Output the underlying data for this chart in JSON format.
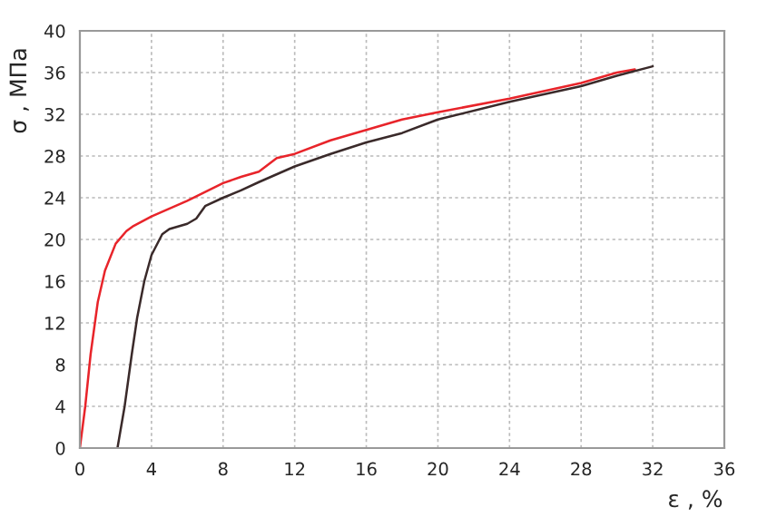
{
  "chart_data": {
    "type": "line",
    "xlabel": "ε , %",
    "ylabel": "σ , МПа",
    "xlim": [
      0,
      36
    ],
    "ylim": [
      0,
      40
    ],
    "xticks": [
      0,
      4,
      8,
      12,
      16,
      20,
      24,
      28,
      32,
      36
    ],
    "yticks": [
      0,
      4,
      8,
      12,
      16,
      20,
      24,
      28,
      32,
      36,
      40
    ],
    "grid": true,
    "marker": "none",
    "line_style": "solid",
    "series": [
      {
        "color": "#e8242a",
        "x": [
          0,
          0.3,
          0.6,
          1,
          1.4,
          2,
          2.6,
          3,
          4,
          6,
          8,
          9,
          10,
          11,
          12,
          14,
          16,
          18,
          20,
          24,
          28,
          30,
          31
        ],
        "values": [
          0,
          4,
          9,
          14,
          17,
          19.6,
          20.8,
          21.3,
          22.2,
          23.7,
          25.4,
          26,
          26.5,
          27.8,
          28.2,
          29.5,
          30.5,
          31.5,
          32.2,
          33.5,
          35,
          36,
          36.3
        ]
      },
      {
        "color": "#3a2a2a",
        "x": [
          2.1,
          2.5,
          2.9,
          3.2,
          3.6,
          4,
          4.6,
          5,
          6,
          6.5,
          7,
          8,
          9,
          10,
          12,
          14,
          16,
          18,
          20,
          24,
          28,
          30,
          32
        ],
        "values": [
          0,
          4,
          9,
          12.5,
          16,
          18.5,
          20.5,
          21,
          21.5,
          22,
          23.2,
          24,
          24.7,
          25.5,
          27,
          28.2,
          29.3,
          30.2,
          31.5,
          33.2,
          34.7,
          35.7,
          36.6
        ]
      }
    ]
  }
}
